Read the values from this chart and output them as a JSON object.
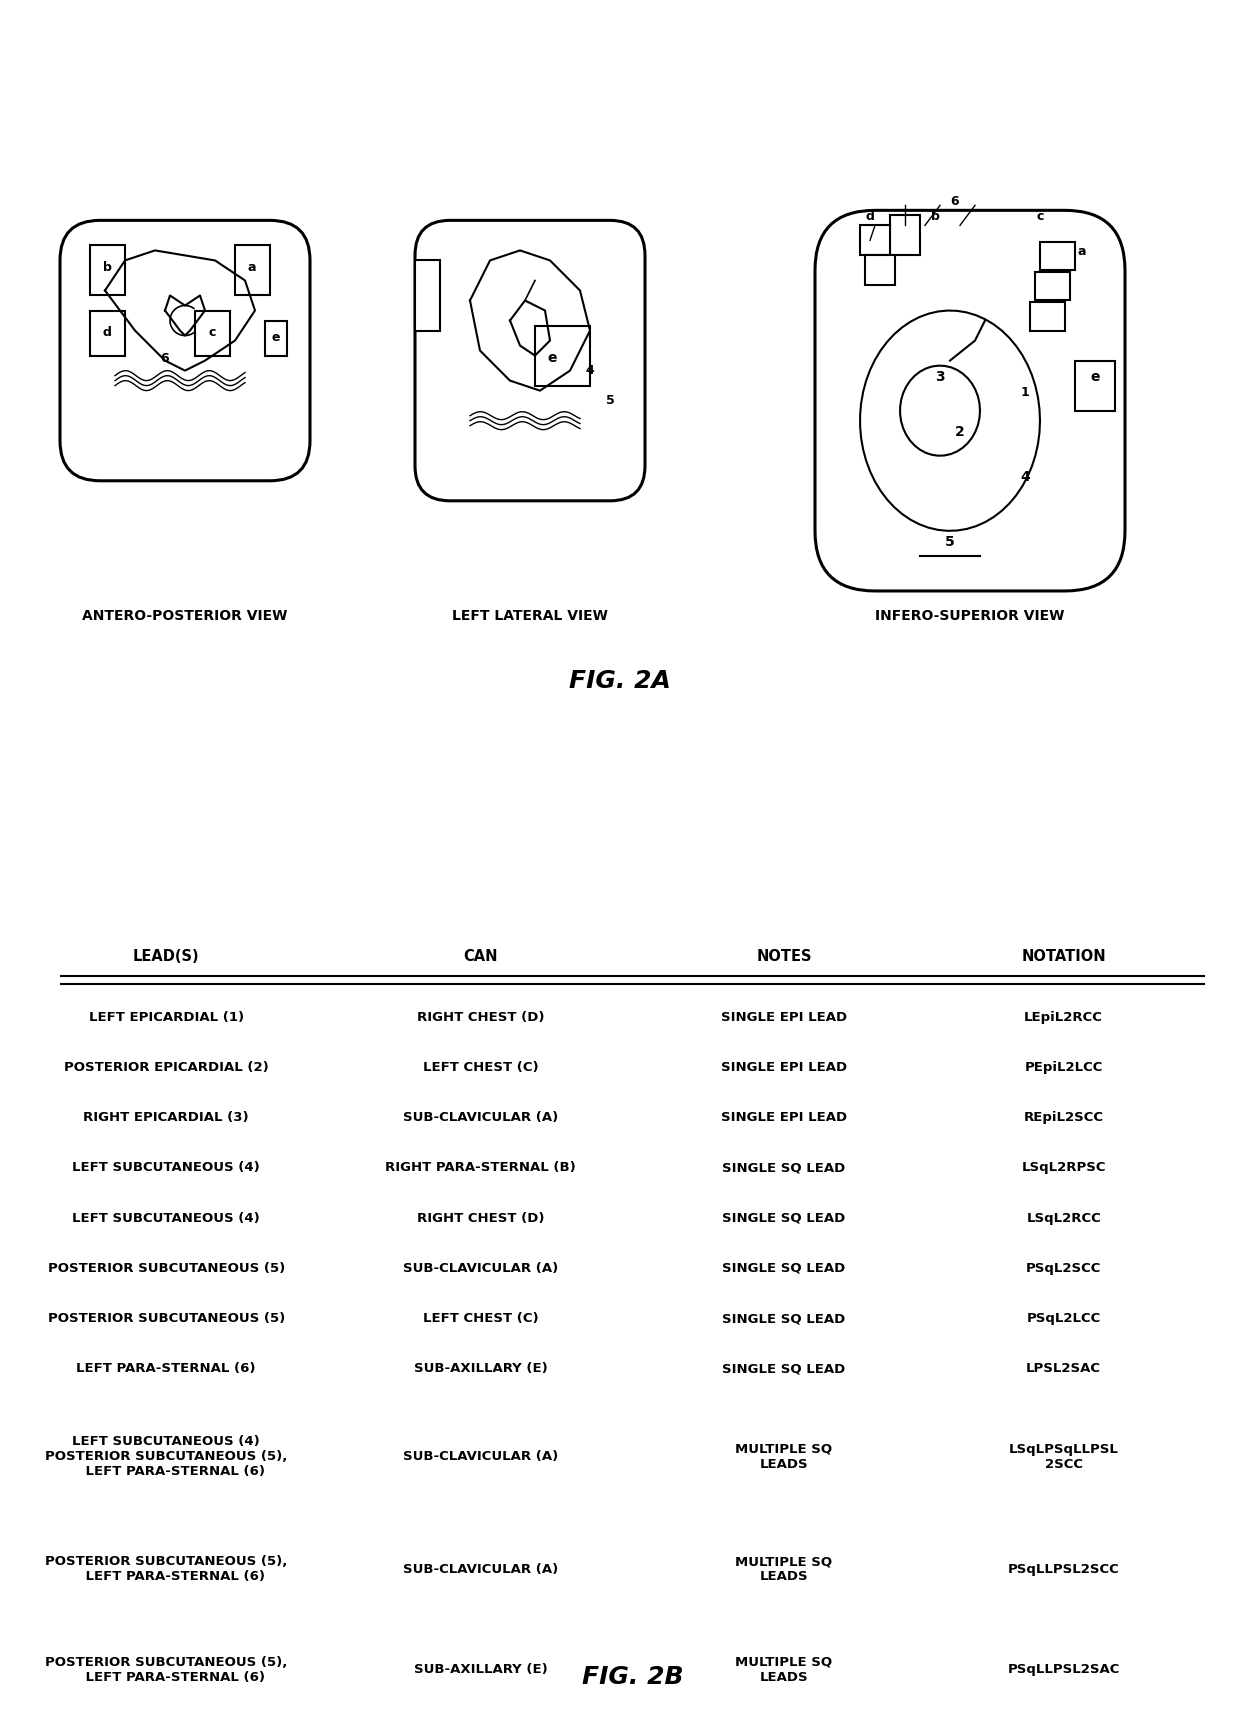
{
  "fig2a_label": "FIG. 2A",
  "fig2b_label": "FIG. 2B",
  "view_labels": [
    "ANTERO-POSTERIOR VIEW",
    "LEFT LATERAL VIEW",
    "INFERO-SUPERIOR VIEW"
  ],
  "table_headers": [
    "LEAD(S)",
    "CAN",
    "NOTES",
    "NOTATION"
  ],
  "table_rows": [
    [
      "LEFT EPICARDIAL (1)",
      "RIGHT CHEST (D)",
      "SINGLE EPI LEAD",
      "LEpiL2RCC"
    ],
    [
      "POSTERIOR EPICARDIAL (2)",
      "LEFT CHEST (C)",
      "SINGLE EPI LEAD",
      "PEpiL2LCC"
    ],
    [
      "RIGHT EPICARDIAL (3)",
      "SUB-CLAVICULAR (A)",
      "SINGLE EPI LEAD",
      "REpiL2SCC"
    ],
    [
      "LEFT SUBCUTANEOUS (4)",
      "RIGHT PARA-STERNAL (B)",
      "SINGLE SQ LEAD",
      "LSqL2RPSC"
    ],
    [
      "LEFT SUBCUTANEOUS (4)",
      "RIGHT CHEST (D)",
      "SINGLE SQ LEAD",
      "LSqL2RCC"
    ],
    [
      "POSTERIOR SUBCUTANEOUS (5)",
      "SUB-CLAVICULAR (A)",
      "SINGLE SQ LEAD",
      "PSqL2SCC"
    ],
    [
      "POSTERIOR SUBCUTANEOUS (5)",
      "LEFT CHEST (C)",
      "SINGLE SQ LEAD",
      "PSqL2LCC"
    ],
    [
      "LEFT PARA-STERNAL (6)",
      "SUB-AXILLARY (E)",
      "SINGLE SQ LEAD",
      "LPSL2SAC"
    ],
    [
      "LEFT SUBCUTANEOUS (4)\nPOSTERIOR SUBCUTANEOUS (5),\n    LEFT PARA-STERNAL (6)",
      "SUB-CLAVICULAR (A)",
      "MULTIPLE SQ\nLEADS",
      "LSqLPSqLLPSL\n2SCC"
    ],
    [
      "POSTERIOR SUBCUTANEOUS (5),\n    LEFT PARA-STERNAL (6)",
      "SUB-CLAVICULAR (A)",
      "MULTIPLE SQ\nLEADS",
      "PSqLLPSL2SCC"
    ],
    [
      "POSTERIOR SUBCUTANEOUS (5),\n    LEFT PARA-STERNAL (6)",
      "SUB-AXILLARY (E)",
      "MULTIPLE SQ\nLEADS",
      "PSqLLPSL2SAC"
    ]
  ],
  "background_color": "#ffffff",
  "text_color": "#000000",
  "font_size_table": 9.5,
  "font_size_header": 10,
  "font_size_fig_label": 16
}
